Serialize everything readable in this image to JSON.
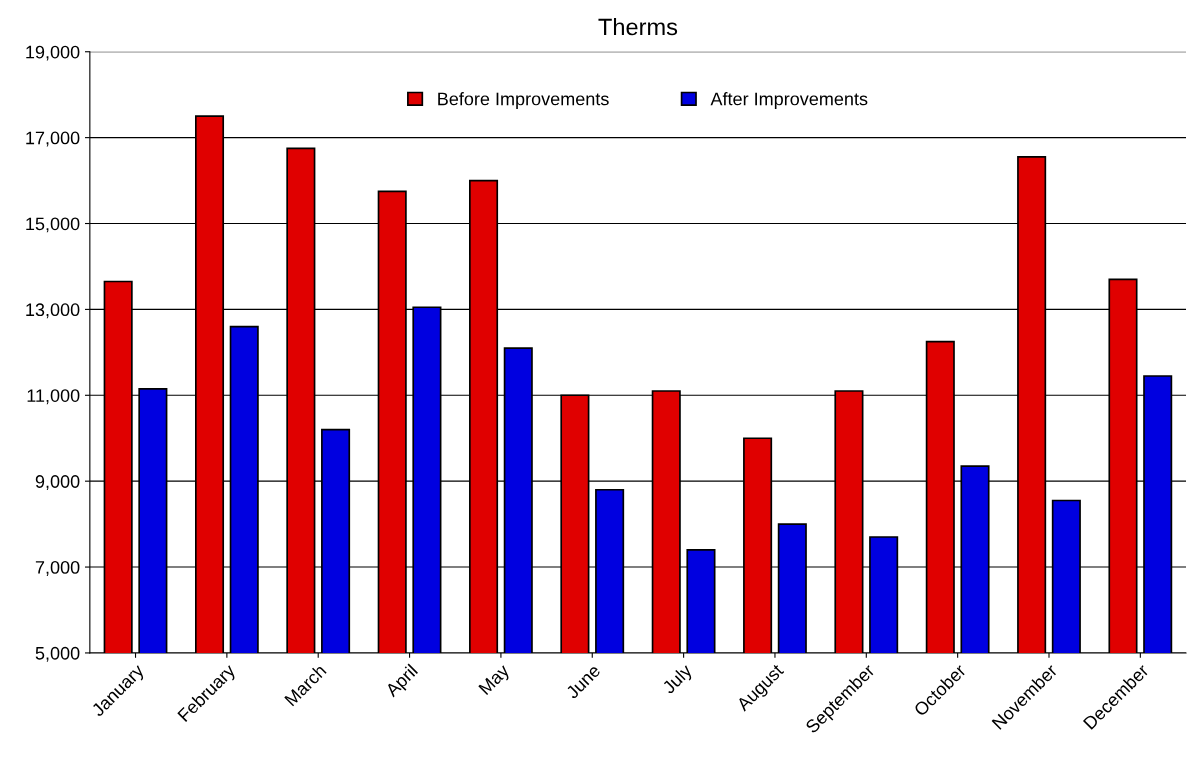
{
  "chart_data": {
    "type": "bar",
    "title": "Therms",
    "categories": [
      "January",
      "February",
      "March",
      "April",
      "May",
      "June",
      "July",
      "August",
      "September",
      "October",
      "November",
      "December"
    ],
    "series": [
      {
        "name": "Before Improvements",
        "color": "#e00000",
        "values": [
          13650,
          17500,
          16750,
          15750,
          16000,
          11000,
          11100,
          10000,
          11100,
          12250,
          16550,
          13700
        ]
      },
      {
        "name": "After Improvements",
        "color": "#0000e0",
        "values": [
          11150,
          12600,
          10200,
          13050,
          12100,
          8800,
          7400,
          8000,
          7700,
          9350,
          8550,
          11450
        ]
      }
    ],
    "ylim": [
      5000,
      19000
    ],
    "yticks": [
      {
        "value": 5000,
        "label": "5,000"
      },
      {
        "value": 7000,
        "label": "7,000"
      },
      {
        "value": 9000,
        "label": "9,000"
      },
      {
        "value": 11000,
        "label": "11,000"
      },
      {
        "value": 13000,
        "label": "13,000"
      },
      {
        "value": 15000,
        "label": "15,000"
      },
      {
        "value": 17000,
        "label": "17,000"
      },
      {
        "value": 19000,
        "label": "19,000"
      }
    ],
    "grid": "y",
    "legend": "top"
  }
}
